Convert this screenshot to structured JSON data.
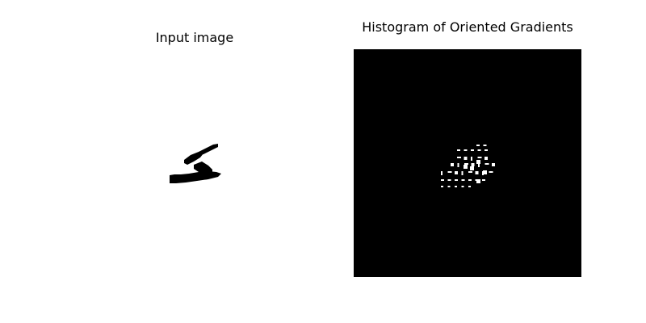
{
  "figure": {
    "left_panel": {
      "title": "Input image",
      "image": "handwritten-digit-5"
    },
    "right_panel": {
      "title": "Histogram of Oriented Gradients",
      "image": "hog-visualization"
    }
  },
  "colors": {
    "background": "#ffffff",
    "ink": "#000000",
    "hog_background": "#000000",
    "hog_marks": "#ffffff"
  }
}
